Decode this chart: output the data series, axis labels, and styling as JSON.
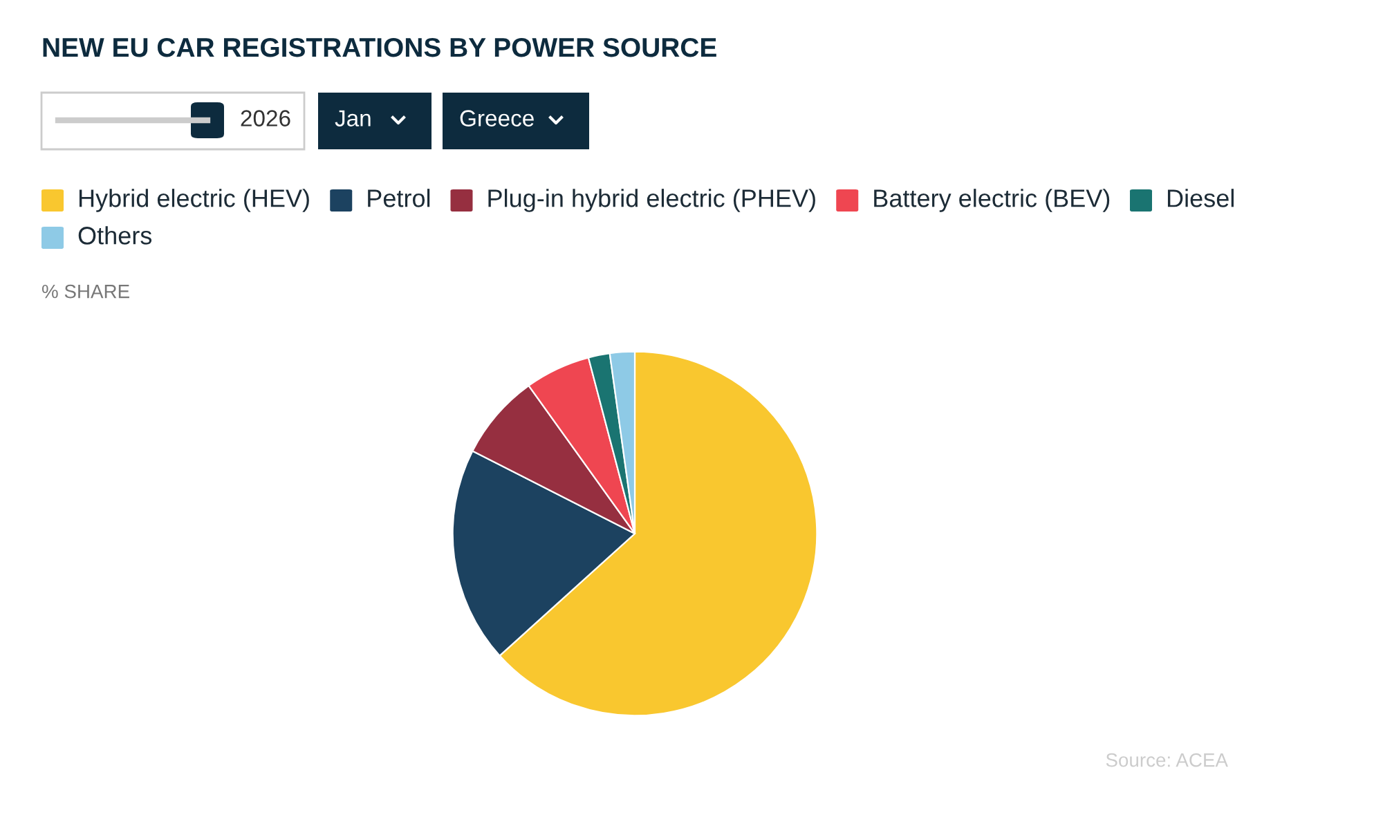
{
  "chart_data": {
    "type": "pie",
    "title": "NEW EU CAR REGISTRATIONS BY POWER SOURCE",
    "ylabel": "% SHARE",
    "categories": [
      "Hybrid electric (HEV)",
      "Petrol",
      "Plug-in hybrid electric (PHEV)",
      "Battery electric (BEV)",
      "Diesel",
      "Others"
    ],
    "values": [
      63.3,
      19.2,
      7.6,
      5.8,
      1.9,
      2.2
    ],
    "colors": [
      "#f9c72f",
      "#1c4260",
      "#962f40",
      "#ef4651",
      "#1a7471",
      "#8ecae6"
    ],
    "legend": "top",
    "annotations": [
      "2026",
      "Jan",
      "Greece",
      "Source: ACEA"
    ]
  }
}
